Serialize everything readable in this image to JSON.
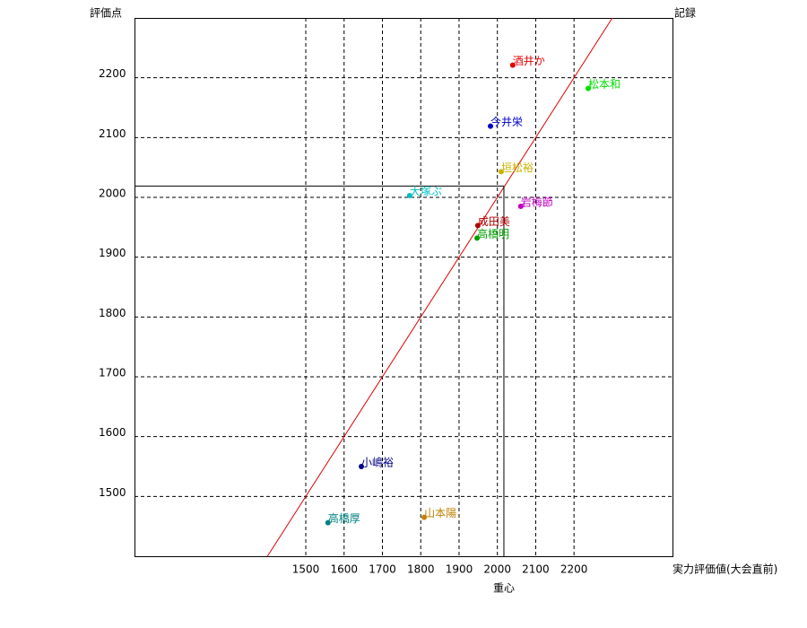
{
  "chart_data": {
    "type": "scatter",
    "y_label": "評価点",
    "y2_label": "記録",
    "x_label": "実力評価値(大会直前)",
    "xlim": [
      1053,
      2457
    ],
    "ylim": [
      1400,
      2300
    ],
    "xticks": [
      1500,
      1600,
      1700,
      1800,
      1900,
      2000,
      2100,
      2200
    ],
    "yticks": [
      1500,
      1600,
      1700,
      1800,
      1900,
      2000,
      2100,
      2200
    ],
    "grid": true,
    "diagonal": {
      "x": [
        1400,
        2300
      ],
      "y": [
        1400,
        2300
      ],
      "color": "#e00000"
    },
    "centroid": {
      "label": "重心",
      "x": 2017,
      "y": 2019
    },
    "points": [
      {
        "name": "酒井か",
        "color": "#e00000",
        "x": 2040,
        "y": 2221
      },
      {
        "name": "松本和",
        "color": "#00e000",
        "x": 2237,
        "y": 2182
      },
      {
        "name": "今井栄",
        "color": "#0000c8",
        "x": 1982,
        "y": 2119
      },
      {
        "name": "垣松裕",
        "color": "#c8b400",
        "x": 2010,
        "y": 2043
      },
      {
        "name": "大塚ぶ",
        "color": "#00c0c0",
        "x": 1771,
        "y": 2003
      },
      {
        "name": "岩梅節",
        "color": "#c000c0",
        "x": 2061,
        "y": 1985
      },
      {
        "name": "成田美",
        "color": "#b00000",
        "x": 1949,
        "y": 1953
      },
      {
        "name": "高橋明",
        "color": "#00a000",
        "x": 1947,
        "y": 1932
      },
      {
        "name": "小嶋裕",
        "color": "#000080",
        "x": 1645,
        "y": 1550
      },
      {
        "name": "山本陽",
        "color": "#c08000",
        "x": 1809,
        "y": 1465
      },
      {
        "name": "高橋厚",
        "color": "#008080",
        "x": 1558,
        "y": 1456
      }
    ]
  }
}
